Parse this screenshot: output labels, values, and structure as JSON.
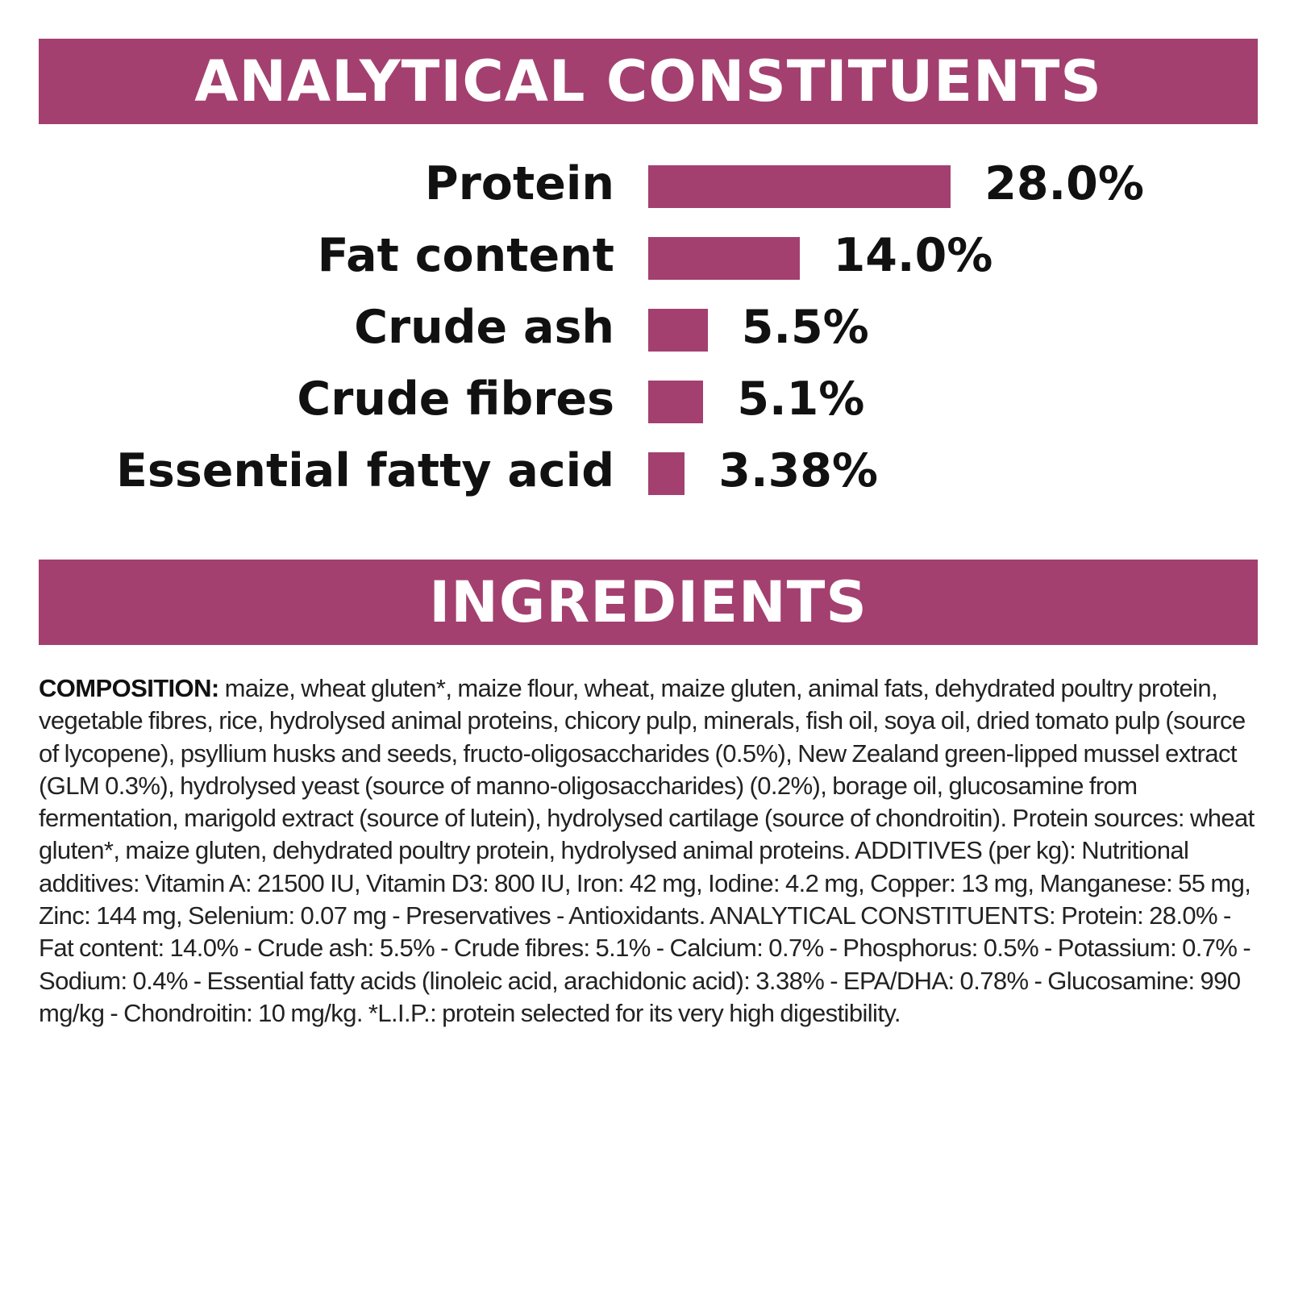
{
  "sections": {
    "analytical_title": "ANALYTICAL CONSTITUENTS",
    "ingredients_title": "INGREDIENTS"
  },
  "colors": {
    "accent": "#a3406f",
    "text": "#111111",
    "background": "#ffffff"
  },
  "chart_data": {
    "type": "bar",
    "orientation": "horizontal",
    "title": "ANALYTICAL CONSTITUENTS",
    "categories": [
      "Protein",
      "Fat content",
      "Crude ash",
      "Crude fibres",
      "Essential fatty acid"
    ],
    "values": [
      28.0,
      14.0,
      5.5,
      5.1,
      3.38
    ],
    "value_labels": [
      "28.0%",
      "14.0%",
      "5.5%",
      "5.1%",
      "3.38%"
    ],
    "unit": "%",
    "bar_color": "#a3406f",
    "grid": false,
    "legend": "none",
    "axes": "none"
  },
  "composition": {
    "label": "COMPOSITION:",
    "text": " maize, wheat gluten*, maize flour, wheat, maize gluten, animal fats, dehydrated poultry protein, vegetable fibres, rice, hydrolysed animal proteins, chicory pulp, minerals, fish oil, soya oil, dried tomato pulp (source of lycopene), psyllium husks and seeds, fructo-oligosaccharides (0.5%), New Zealand green-lipped mussel extract (GLM 0.3%), hydrolysed yeast (source of manno-oligosaccharides) (0.2%), borage oil, glucosamine from fermentation, marigold extract (source of lutein), hydrolysed cartilage (source of chondroitin). Protein sources: wheat gluten*, maize gluten, dehydrated poultry protein, hydrolysed animal proteins. ADDITIVES (per kg): Nutritional additives: Vitamin A: 21500 IU, Vitamin D3: 800 IU, Iron: 42 mg, Iodine: 4.2 mg, Copper: 13 mg, Manganese: 55 mg, Zinc: 144 mg, Selenium: 0.07 mg - Preservatives - Antioxidants. ANALYTICAL CONSTITUENTS: Protein: 28.0% - Fat content: 14.0% - Crude ash: 5.5% - Crude fibres: 5.1% - Calcium: 0.7% - Phosphorus: 0.5% - Potassium: 0.7% - Sodium: 0.4% - Essential fatty acids (linoleic acid, arachidonic acid): 3.38% - EPA/DHA: 0.78% - Glucosamine: 990 mg/kg - Chondroitin: 10 mg/kg. *L.I.P.: protein selected for its very high digestibility."
  }
}
